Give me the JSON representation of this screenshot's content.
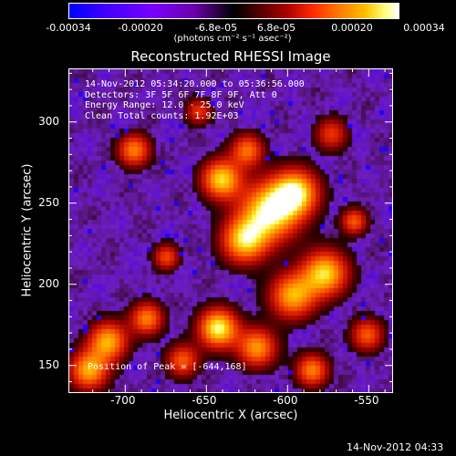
{
  "colorbar": {
    "ticks": [
      "-0.00034",
      "-0.00020",
      "-6.8e-05",
      "6.8e-05",
      "0.00020",
      "0.00034"
    ],
    "unit_label": "(photons cm⁻² s⁻¹ asec⁻²)",
    "colors": [
      "#0000ff",
      "#7a00ff",
      "#000000",
      "#aa0000",
      "#ff7a00",
      "#ffffff"
    ]
  },
  "plot": {
    "title": "Reconstructed RHESSI Image",
    "info_lines": [
      "14-Nov-2012 05:34:20.000 to 05:36:56.000",
      "Detectors: 3F 5F 6F 7F 8F 9F, Att 0",
      "Energy Range: 12.0 - 25.0 keV",
      "Clean    Total counts: 1.92E+03"
    ],
    "peak_label": "Position of Peak = [-644,168]",
    "x_axis": {
      "label": "Heliocentric X (arcsec)",
      "ticks": [
        "-700",
        "-650",
        "-600",
        "-550"
      ],
      "tick_values": [
        -700,
        -650,
        -600,
        -550
      ],
      "range": [
        -735,
        -535
      ]
    },
    "y_axis": {
      "label": "Heliocentric Y (arcsec)",
      "ticks": [
        "150",
        "200",
        "250",
        "300"
      ],
      "tick_values": [
        150,
        200,
        250,
        300
      ],
      "range": [
        133,
        333
      ]
    }
  },
  "footer": {
    "timestamp": "14-Nov-2012 04:33"
  }
}
